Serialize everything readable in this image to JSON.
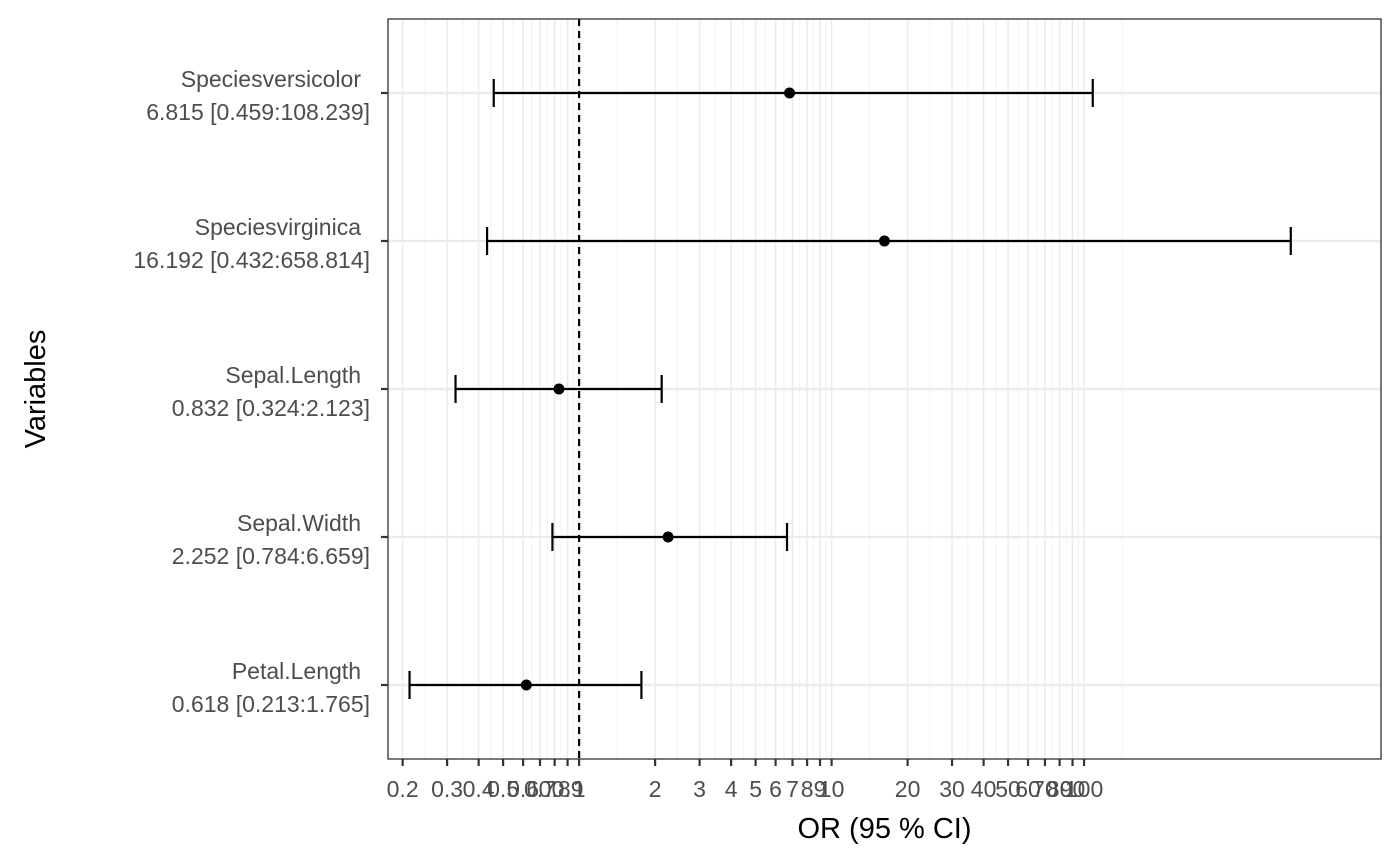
{
  "chart_data": {
    "type": "forest",
    "title": "",
    "xlabel": "OR (95 % CI)",
    "ylabel": "Variables",
    "x_scale": "log10",
    "xlim": [
      0.175,
      1500
    ],
    "reference_line": 1,
    "grid": true,
    "x_ticks": [
      0.2,
      0.3,
      0.4,
      0.5,
      0.6,
      0.7,
      0.8,
      0.9,
      1,
      2,
      3,
      4,
      5,
      6,
      7,
      8,
      9,
      10,
      20,
      30,
      40,
      50,
      60,
      70,
      80,
      90,
      100
    ],
    "x_tick_labels": [
      "0.2",
      "0.3",
      "0.4",
      "0.5",
      "0.6",
      "0.7",
      "0.8",
      "0.9",
      "1",
      "2",
      "3",
      "4",
      "5",
      "6",
      "7",
      "8",
      "9",
      "10",
      "20",
      "30",
      "40",
      "50",
      "60",
      "70",
      "80",
      "90",
      "100"
    ],
    "rows": [
      {
        "variable": "Speciesversicolor",
        "summary": "6.815 [0.459:108.239]",
        "or": 6.815,
        "lower": 0.459,
        "upper": 108.239
      },
      {
        "variable": "Speciesvirginica",
        "summary": "16.192 [0.432:658.814]",
        "or": 16.192,
        "lower": 0.432,
        "upper": 658.814
      },
      {
        "variable": "Sepal.Length",
        "summary": "0.832 [0.324:2.123]",
        "or": 0.832,
        "lower": 0.324,
        "upper": 2.123
      },
      {
        "variable": "Sepal.Width",
        "summary": "2.252 [0.784:6.659]",
        "or": 2.252,
        "lower": 0.784,
        "upper": 6.659
      },
      {
        "variable": "Petal.Length",
        "summary": "0.618 [0.213:1.765]",
        "or": 0.618,
        "lower": 0.213,
        "upper": 1.765
      }
    ]
  }
}
